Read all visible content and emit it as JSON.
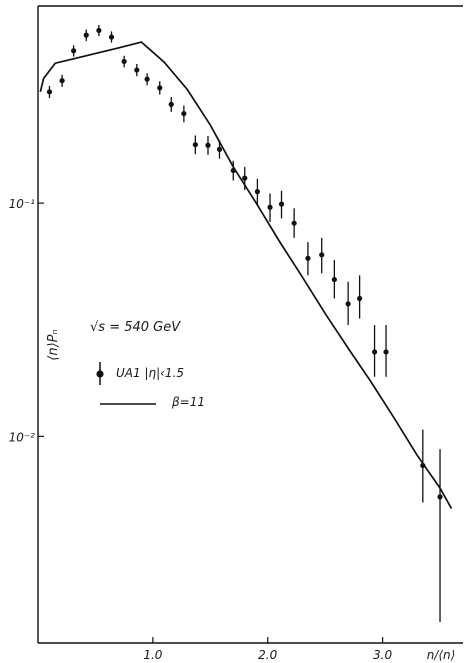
{
  "chart_data": {
    "type": "scatter",
    "title": "",
    "xlabel": "n/⟨n⟩",
    "ylabel": "⟨n⟩Pₙ",
    "x_scale": "linear",
    "y_scale": "log",
    "xlim": [
      0.0,
      3.7
    ],
    "ylim": [
      0.0013,
      0.7
    ],
    "x_ticks": [
      {
        "value": 1.0,
        "label": "1.0"
      },
      {
        "value": 2.0,
        "label": "2.0"
      },
      {
        "value": 3.0,
        "label": "3.0"
      }
    ],
    "y_ticks": [
      {
        "value": 0.1,
        "label": "10⁻¹"
      },
      {
        "value": 0.01,
        "label": "10⁻²"
      }
    ],
    "grid": false,
    "legend": {
      "placement": "center-left",
      "header": "√s = 540 GeV",
      "entries": [
        {
          "marker": "point-with-error-bar",
          "label": "UA1 |η|‹1.5"
        },
        {
          "marker": "line",
          "label": "β=11"
        }
      ]
    },
    "series": [
      {
        "name": "UA1 |η|‹1.5",
        "kind": "points",
        "points": [
          {
            "x": 0.1,
            "y": 0.3,
            "err_lo": 0.282,
            "err_hi": 0.318
          },
          {
            "x": 0.21,
            "y": 0.335,
            "err_lo": 0.315,
            "err_hi": 0.355
          },
          {
            "x": 0.31,
            "y": 0.45,
            "err_lo": 0.425,
            "err_hi": 0.475
          },
          {
            "x": 0.42,
            "y": 0.525,
            "err_lo": 0.495,
            "err_hi": 0.555
          },
          {
            "x": 0.53,
            "y": 0.55,
            "err_lo": 0.52,
            "err_hi": 0.58
          },
          {
            "x": 0.64,
            "y": 0.515,
            "err_lo": 0.488,
            "err_hi": 0.545
          },
          {
            "x": 0.75,
            "y": 0.405,
            "err_lo": 0.382,
            "err_hi": 0.428
          },
          {
            "x": 0.86,
            "y": 0.372,
            "err_lo": 0.35,
            "err_hi": 0.395
          },
          {
            "x": 0.95,
            "y": 0.34,
            "err_lo": 0.32,
            "err_hi": 0.36
          },
          {
            "x": 1.06,
            "y": 0.312,
            "err_lo": 0.292,
            "err_hi": 0.333
          },
          {
            "x": 1.16,
            "y": 0.265,
            "err_lo": 0.246,
            "err_hi": 0.285
          },
          {
            "x": 1.27,
            "y": 0.242,
            "err_lo": 0.222,
            "err_hi": 0.262
          },
          {
            "x": 1.37,
            "y": 0.178,
            "err_lo": 0.162,
            "err_hi": 0.195
          },
          {
            "x": 1.48,
            "y": 0.177,
            "err_lo": 0.161,
            "err_hi": 0.194
          },
          {
            "x": 1.58,
            "y": 0.17,
            "err_lo": 0.155,
            "err_hi": 0.186
          },
          {
            "x": 1.7,
            "y": 0.138,
            "err_lo": 0.125,
            "err_hi": 0.152
          },
          {
            "x": 1.8,
            "y": 0.128,
            "err_lo": 0.114,
            "err_hi": 0.143
          },
          {
            "x": 1.91,
            "y": 0.112,
            "err_lo": 0.098,
            "err_hi": 0.127
          },
          {
            "x": 2.02,
            "y": 0.096,
            "err_lo": 0.083,
            "err_hi": 0.11
          },
          {
            "x": 2.12,
            "y": 0.099,
            "err_lo": 0.086,
            "err_hi": 0.113
          },
          {
            "x": 2.23,
            "y": 0.082,
            "err_lo": 0.071,
            "err_hi": 0.095
          },
          {
            "x": 2.35,
            "y": 0.058,
            "err_lo": 0.049,
            "err_hi": 0.068
          },
          {
            "x": 2.47,
            "y": 0.06,
            "err_lo": 0.05,
            "err_hi": 0.071
          },
          {
            "x": 2.58,
            "y": 0.047,
            "err_lo": 0.039,
            "err_hi": 0.057
          },
          {
            "x": 2.7,
            "y": 0.037,
            "err_lo": 0.03,
            "err_hi": 0.046
          },
          {
            "x": 2.8,
            "y": 0.039,
            "err_lo": 0.032,
            "err_hi": 0.049
          },
          {
            "x": 2.93,
            "y": 0.023,
            "err_lo": 0.018,
            "err_hi": 0.03
          },
          {
            "x": 3.03,
            "y": 0.023,
            "err_lo": 0.018,
            "err_hi": 0.03
          },
          {
            "x": 3.35,
            "y": 0.0075,
            "err_lo": 0.0052,
            "err_hi": 0.0107
          },
          {
            "x": 3.5,
            "y": 0.0055,
            "err_lo": 0.0016,
            "err_hi": 0.0088
          }
        ]
      },
      {
        "name": "β=11",
        "kind": "line",
        "points": [
          {
            "x": 0.02,
            "y": 0.3
          },
          {
            "x": 0.05,
            "y": 0.343
          },
          {
            "x": 0.15,
            "y": 0.398
          },
          {
            "x": 0.4,
            "y": 0.426
          },
          {
            "x": 0.7,
            "y": 0.463
          },
          {
            "x": 0.9,
            "y": 0.49
          },
          {
            "x": 1.1,
            "y": 0.401
          },
          {
            "x": 1.3,
            "y": 0.307
          },
          {
            "x": 1.5,
            "y": 0.216
          },
          {
            "x": 1.7,
            "y": 0.143
          },
          {
            "x": 1.9,
            "y": 0.1
          },
          {
            "x": 2.1,
            "y": 0.0688
          },
          {
            "x": 2.3,
            "y": 0.0483
          },
          {
            "x": 2.5,
            "y": 0.0336
          },
          {
            "x": 2.7,
            "y": 0.0239
          },
          {
            "x": 2.9,
            "y": 0.0171
          },
          {
            "x": 3.1,
            "y": 0.012
          },
          {
            "x": 3.3,
            "y": 0.0083
          },
          {
            "x": 3.5,
            "y": 0.006
          },
          {
            "x": 3.6,
            "y": 0.0049
          }
        ]
      }
    ]
  }
}
